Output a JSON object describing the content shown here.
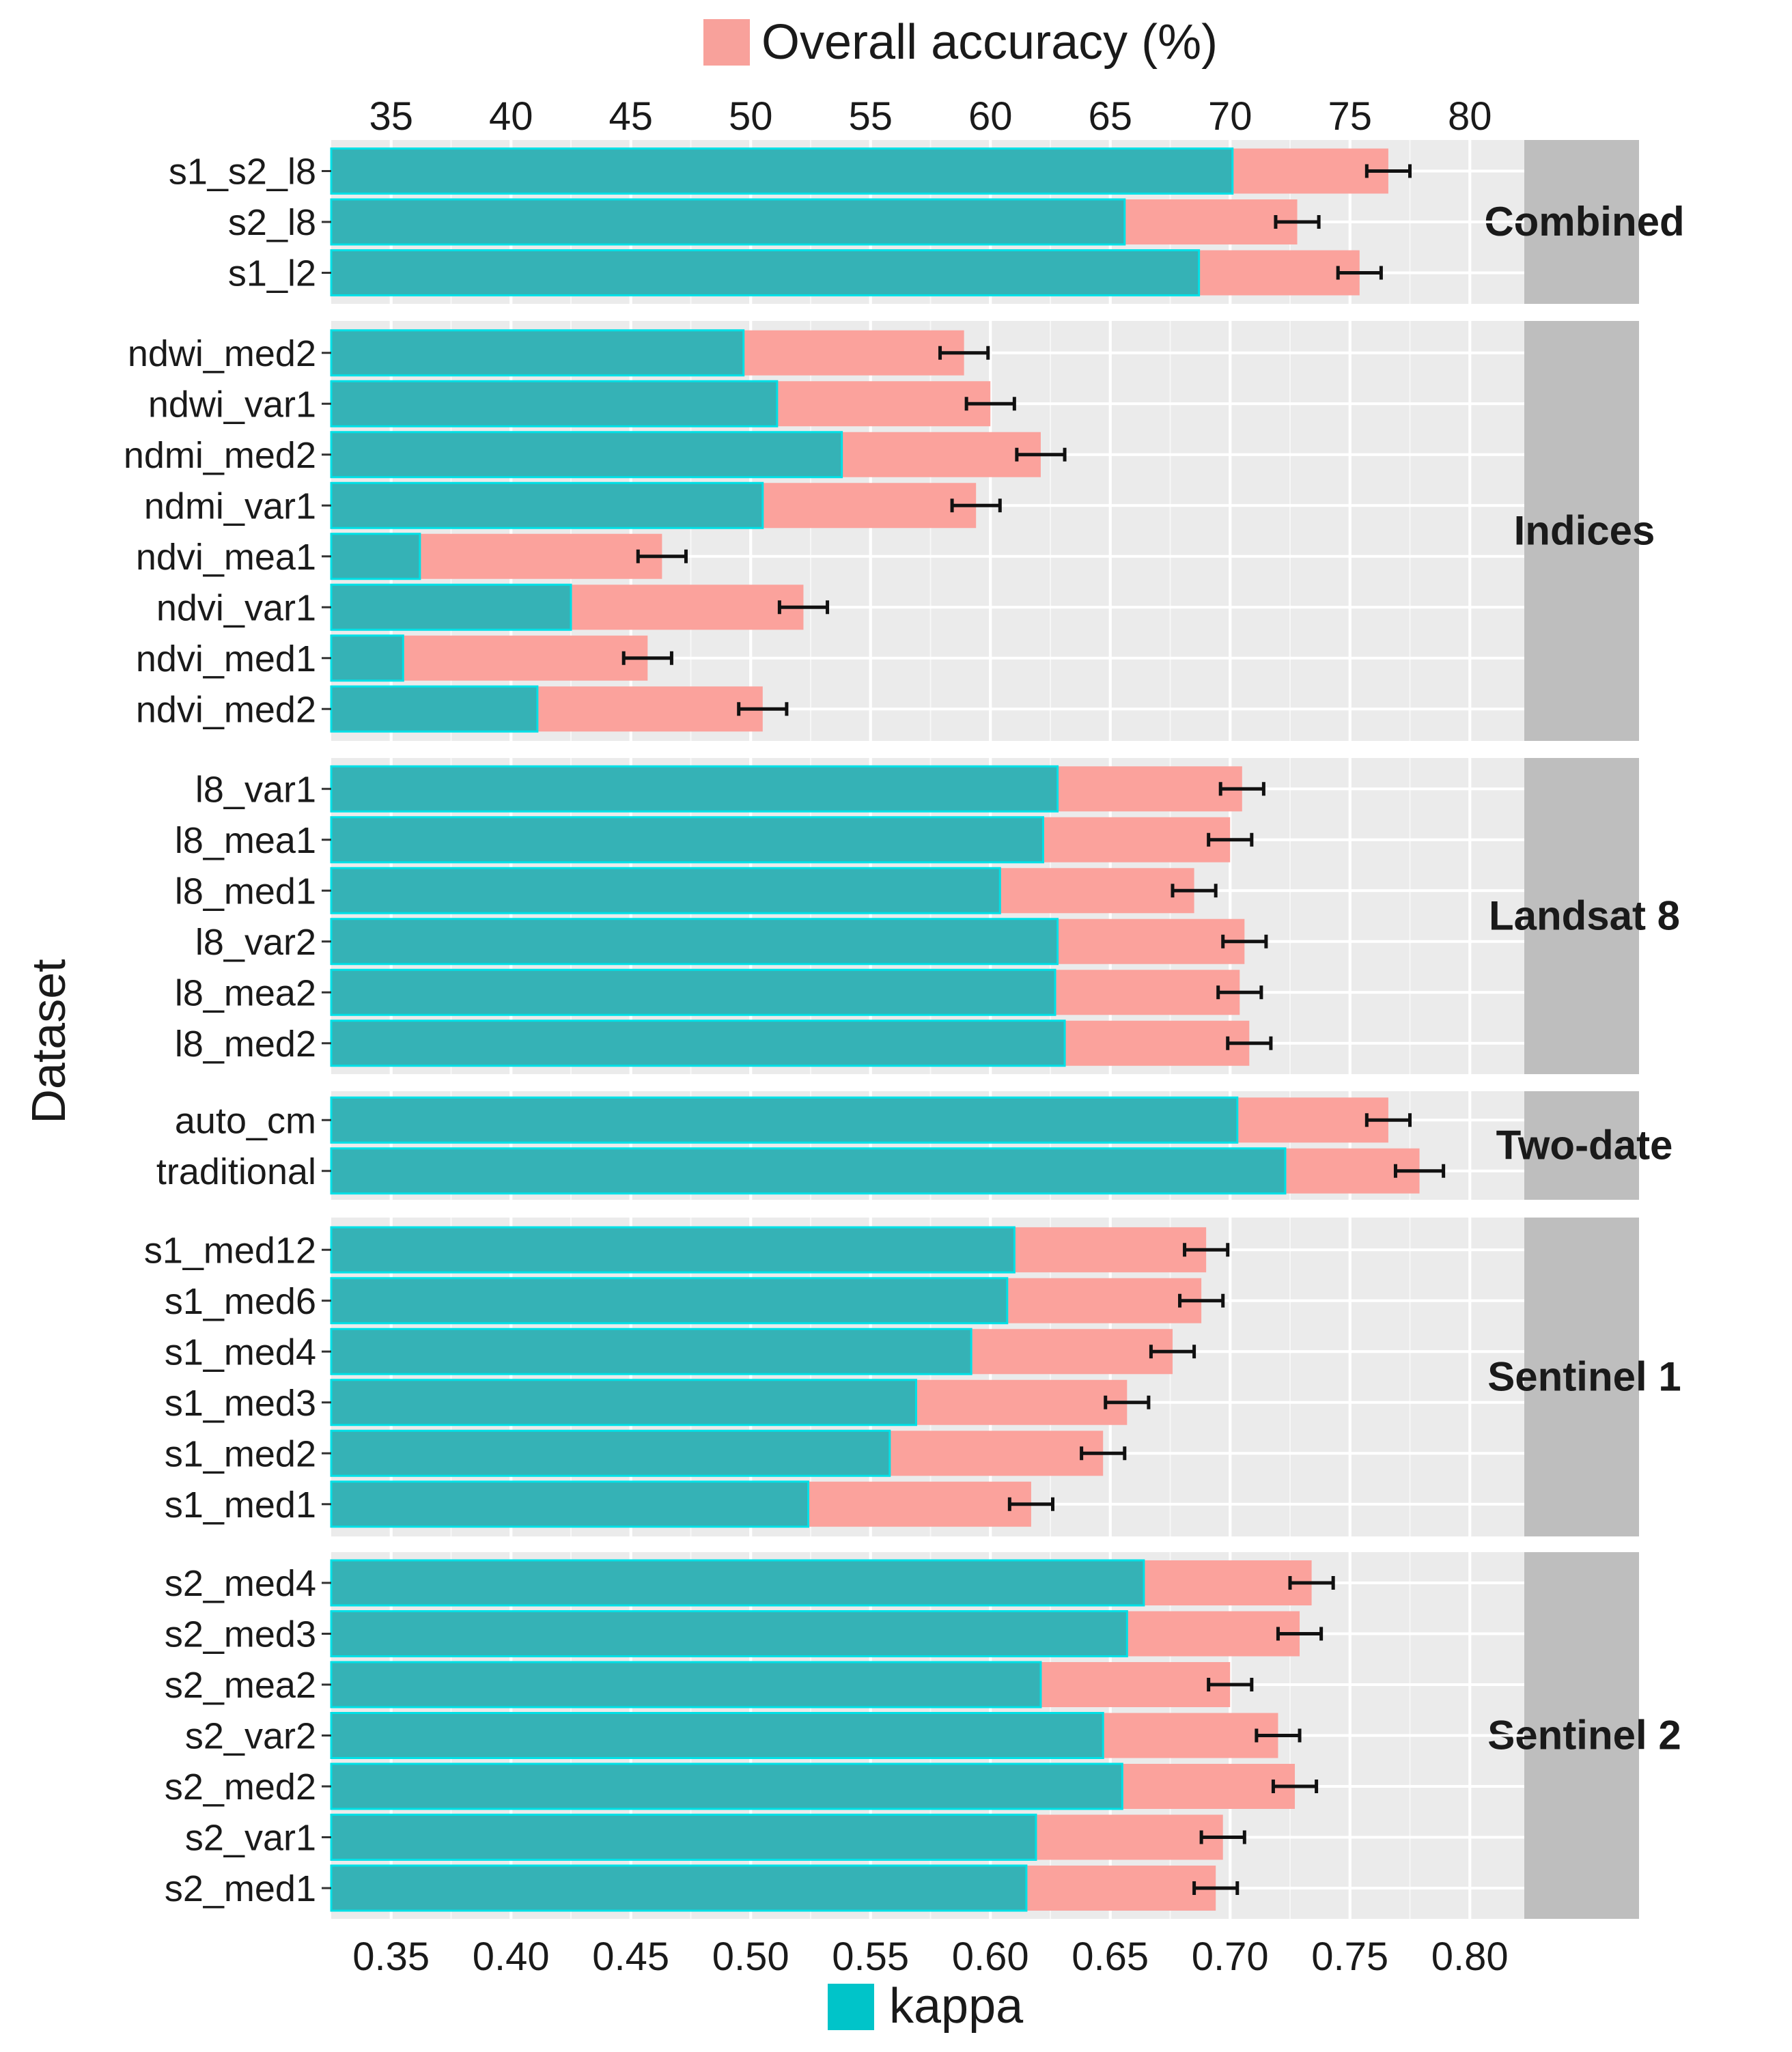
{
  "chart_data": {
    "type": "bar",
    "orientation": "horizontal",
    "ylabel": "Dataset",
    "top_axis": {
      "label": "Overall accuracy (%)",
      "range": [
        32.5,
        82.5
      ],
      "ticks": [
        "35",
        "40",
        "45",
        "50",
        "55",
        "60",
        "65",
        "70",
        "75",
        "80"
      ]
    },
    "bottom_axis": {
      "label": "kappa",
      "range": [
        0.325,
        0.825
      ],
      "ticks": [
        "0.35",
        "0.40",
        "0.45",
        "0.50",
        "0.55",
        "0.60",
        "0.65",
        "0.70",
        "0.75",
        "0.80"
      ]
    },
    "legend": [
      {
        "name": "Overall accuracy (%)",
        "color": "#f8a19b"
      },
      {
        "name": "kappa",
        "color": "#00c4c9"
      }
    ],
    "colors": {
      "accuracy": "#fba29c",
      "kappa": "#35b2b6",
      "kappa_edge": "#00e0e6",
      "panel": "#ebebeb",
      "strip": "#bebebe"
    },
    "panels": [
      {
        "name": "Combined",
        "rows": [
          {
            "label": "s1_s2_l8",
            "kappa": 0.701,
            "oa": 76.6,
            "err": 0.9
          },
          {
            "label": "s2_l8",
            "kappa": 0.656,
            "oa": 72.8,
            "err": 0.9
          },
          {
            "label": "s1_l2",
            "kappa": 0.687,
            "oa": 75.4,
            "err": 0.9
          }
        ]
      },
      {
        "name": "Indices",
        "rows": [
          {
            "label": "ndwi_med2",
            "kappa": 0.497,
            "oa": 58.9,
            "err": 1.0
          },
          {
            "label": "ndwi_var1",
            "kappa": 0.511,
            "oa": 60.0,
            "err": 1.0
          },
          {
            "label": "ndmi_med2",
            "kappa": 0.538,
            "oa": 62.1,
            "err": 1.0
          },
          {
            "label": "ndmi_var1",
            "kappa": 0.505,
            "oa": 59.4,
            "err": 1.0
          },
          {
            "label": "ndvi_mea1",
            "kappa": 0.362,
            "oa": 46.3,
            "err": 1.0
          },
          {
            "label": "ndvi_var1",
            "kappa": 0.425,
            "oa": 52.2,
            "err": 1.0
          },
          {
            "label": "ndvi_med1",
            "kappa": 0.355,
            "oa": 45.7,
            "err": 1.0
          },
          {
            "label": "ndvi_med2",
            "kappa": 0.411,
            "oa": 50.5,
            "err": 1.0
          }
        ]
      },
      {
        "name": "Landsat 8",
        "rows": [
          {
            "label": "l8_var1",
            "kappa": 0.628,
            "oa": 70.5,
            "err": 0.9
          },
          {
            "label": "l8_mea1",
            "kappa": 0.622,
            "oa": 70.0,
            "err": 0.9
          },
          {
            "label": "l8_med1",
            "kappa": 0.604,
            "oa": 68.5,
            "err": 0.9
          },
          {
            "label": "l8_var2",
            "kappa": 0.628,
            "oa": 70.6,
            "err": 0.9
          },
          {
            "label": "l8_mea2",
            "kappa": 0.627,
            "oa": 70.4,
            "err": 0.9
          },
          {
            "label": "l8_med2",
            "kappa": 0.631,
            "oa": 70.8,
            "err": 0.9
          }
        ]
      },
      {
        "name": "Two-date",
        "rows": [
          {
            "label": "auto_cm",
            "kappa": 0.703,
            "oa": 76.6,
            "err": 0.9
          },
          {
            "label": "traditional",
            "kappa": 0.723,
            "oa": 77.9,
            "err": 1.0
          }
        ]
      },
      {
        "name": "Sentinel 1",
        "rows": [
          {
            "label": "s1_med12",
            "kappa": 0.61,
            "oa": 69.0,
            "err": 0.9
          },
          {
            "label": "s1_med6",
            "kappa": 0.607,
            "oa": 68.8,
            "err": 0.9
          },
          {
            "label": "s1_med4",
            "kappa": 0.592,
            "oa": 67.6,
            "err": 0.9
          },
          {
            "label": "s1_med3",
            "kappa": 0.569,
            "oa": 65.7,
            "err": 0.9
          },
          {
            "label": "s1_med2",
            "kappa": 0.558,
            "oa": 64.7,
            "err": 0.9
          },
          {
            "label": "s1_med1",
            "kappa": 0.524,
            "oa": 61.7,
            "err": 0.9
          }
        ]
      },
      {
        "name": "Sentinel 2",
        "rows": [
          {
            "label": "s2_med4",
            "kappa": 0.664,
            "oa": 73.4,
            "err": 0.9
          },
          {
            "label": "s2_med3",
            "kappa": 0.657,
            "oa": 72.9,
            "err": 0.9
          },
          {
            "label": "s2_mea2",
            "kappa": 0.621,
            "oa": 70.0,
            "err": 0.9
          },
          {
            "label": "s2_var2",
            "kappa": 0.647,
            "oa": 72.0,
            "err": 0.9
          },
          {
            "label": "s2_med2",
            "kappa": 0.655,
            "oa": 72.7,
            "err": 0.9
          },
          {
            "label": "s2_var1",
            "kappa": 0.619,
            "oa": 69.7,
            "err": 0.9
          },
          {
            "label": "s2_med1",
            "kappa": 0.615,
            "oa": 69.4,
            "err": 0.9
          }
        ]
      }
    ]
  }
}
